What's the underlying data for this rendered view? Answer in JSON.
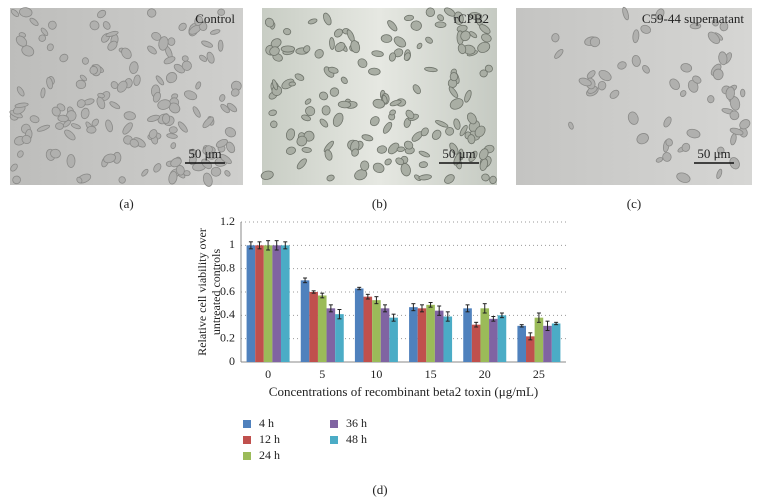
{
  "panels": [
    {
      "label": "(a)",
      "title": "Control",
      "scale_bar": "50 μm"
    },
    {
      "label": "(b)",
      "title": "rCPB2",
      "scale_bar": "50 μm"
    },
    {
      "label": "(c)",
      "title": "C59-44 supernatant",
      "scale_bar": "50 μm"
    }
  ],
  "chart_data": {
    "type": "bar",
    "ylabel": [
      "Relative cell viability over",
      "untreated controls"
    ],
    "xlabel": "Concentrations of recombinant beta2 toxin (μg/mL)",
    "categories": [
      "0",
      "5",
      "10",
      "15",
      "20",
      "25"
    ],
    "series": [
      {
        "name": "4 h",
        "color": "#4f81bd",
        "values": [
          1.0,
          0.7,
          0.63,
          0.47,
          0.46,
          0.31
        ],
        "errors": [
          0.03,
          0.02,
          0.01,
          0.03,
          0.03,
          0.01
        ]
      },
      {
        "name": "12 h",
        "color": "#c0504d",
        "values": [
          1.0,
          0.6,
          0.56,
          0.46,
          0.32,
          0.22
        ],
        "errors": [
          0.03,
          0.01,
          0.02,
          0.03,
          0.02,
          0.03
        ]
      },
      {
        "name": "24 h",
        "color": "#9bbb59",
        "values": [
          1.0,
          0.57,
          0.53,
          0.49,
          0.46,
          0.38
        ],
        "errors": [
          0.04,
          0.02,
          0.03,
          0.02,
          0.04,
          0.04
        ]
      },
      {
        "name": "36 h",
        "color": "#8064a2",
        "values": [
          1.0,
          0.46,
          0.46,
          0.44,
          0.37,
          0.31
        ],
        "errors": [
          0.04,
          0.03,
          0.03,
          0.04,
          0.02,
          0.04
        ]
      },
      {
        "name": "48 h",
        "color": "#4bacc6",
        "values": [
          1.0,
          0.41,
          0.38,
          0.39,
          0.4,
          0.33
        ],
        "errors": [
          0.03,
          0.04,
          0.03,
          0.04,
          0.02,
          0.01
        ]
      }
    ],
    "ylim": [
      0,
      1.2
    ],
    "yticks": [
      0,
      0.2,
      0.4,
      0.6,
      0.8,
      1,
      1.2
    ],
    "grid": true
  },
  "caption": "(d)"
}
